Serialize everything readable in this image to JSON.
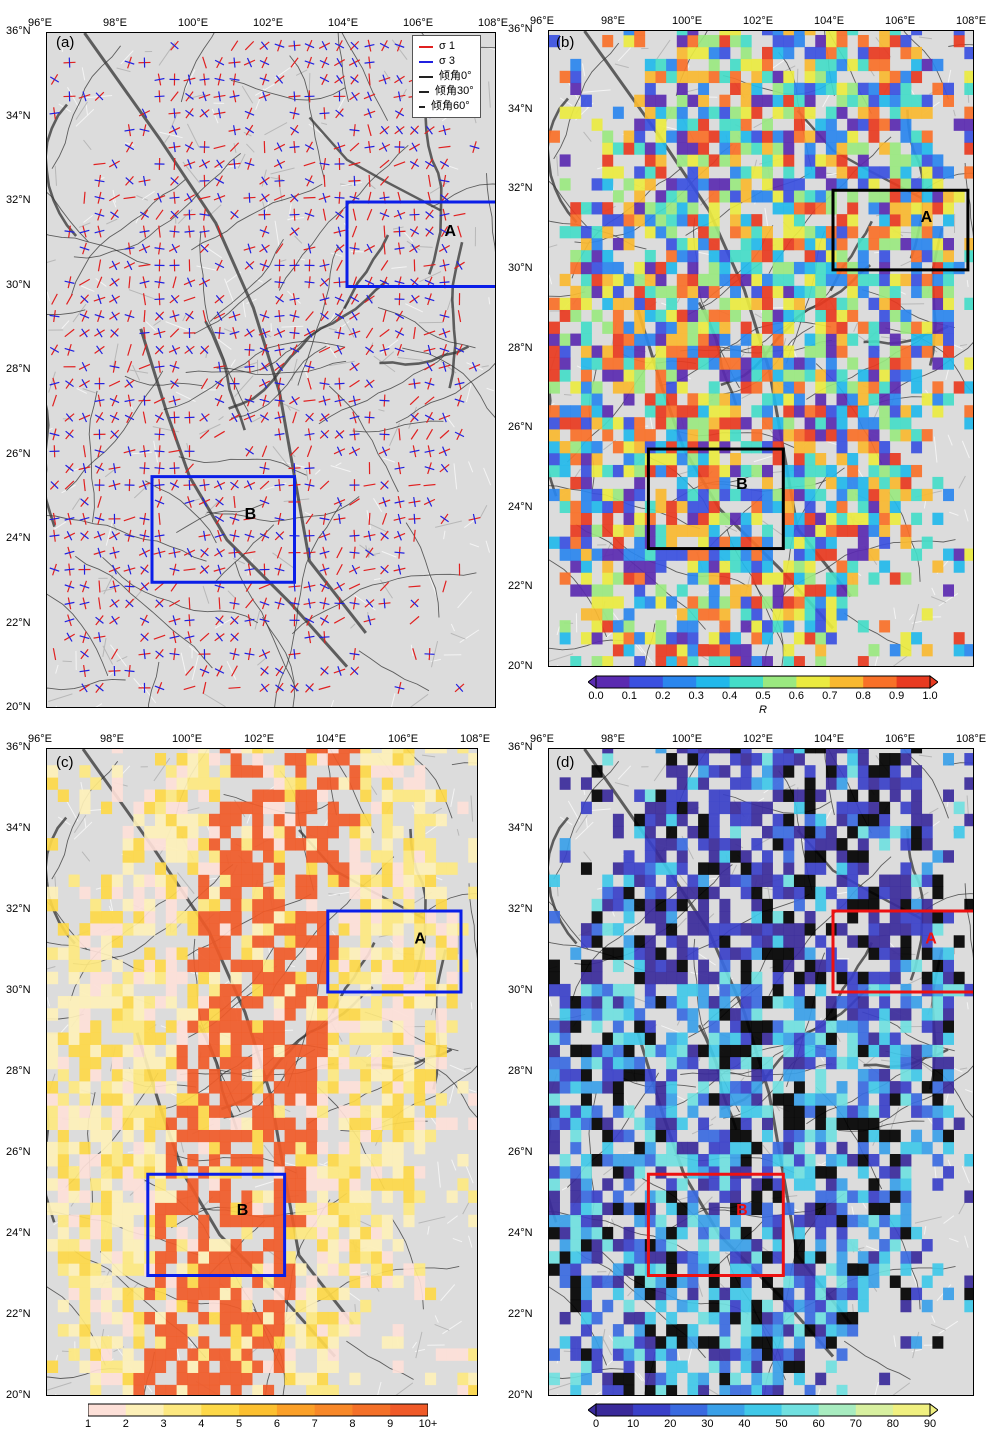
{
  "colors": {
    "sigma1": "#e02020",
    "sigma3": "#2020e0",
    "boxBlue": "#0a1ee8",
    "boxBlack": "#000000",
    "boxRed": "#ee1111",
    "relief": "#dcdcdc",
    "fault": "#333333"
  },
  "axes": {
    "lon_ticks": [
      "96°E",
      "98°E",
      "100°E",
      "102°E",
      "104°E",
      "106°E",
      "108°E"
    ],
    "lat_ticks": [
      "36°N",
      "34°N",
      "32°N",
      "30°N",
      "28°N",
      "26°N",
      "24°N",
      "22°N",
      "20°N"
    ],
    "lon_range": [
      96,
      108
    ],
    "lat_range": [
      20,
      36
    ]
  },
  "panels": [
    {
      "tag": "(a)",
      "box_color": "#0a1ee8",
      "box_a_label": "A",
      "box_b_label": "B",
      "box_a_label_color": "#000000",
      "box_b_label_color": "#000000"
    },
    {
      "tag": "(b)",
      "box_color": "#000000",
      "box_a_label": "A",
      "box_b_label": "B",
      "box_a_label_color": "#000000",
      "box_b_label_color": "#000000"
    },
    {
      "tag": "(c)",
      "box_color": "#0a1ee8",
      "box_a_label": "A",
      "box_b_label": "B",
      "box_a_label_color": "#000000",
      "box_b_label_color": "#000000"
    },
    {
      "tag": "(d)",
      "box_color": "#ee1111",
      "box_a_label": "A",
      "box_b_label": "B",
      "box_a_label_color": "#ee1111",
      "box_b_label_color": "#ee1111"
    }
  ],
  "legend_a": {
    "items": [
      "σ 1",
      "σ 3",
      "倾角0°",
      "倾角30°",
      "倾角60°"
    ]
  },
  "colorbar_b": {
    "labels": [
      "0.0",
      "0.1",
      "0.2",
      "0.3",
      "0.4",
      "0.5",
      "0.6",
      "0.7",
      "0.8",
      "0.9",
      "1.0"
    ],
    "title": "R",
    "colors": [
      "#5a2ab0",
      "#3a50e0",
      "#2a86ee",
      "#22b8ea",
      "#44dcc8",
      "#9ae880",
      "#eaea40",
      "#f8b830",
      "#f87028",
      "#e83a20"
    ]
  },
  "colorbar_c": {
    "labels": [
      "1",
      "2",
      "3",
      "4",
      "5",
      "6",
      "7",
      "8",
      "9",
      "10+"
    ],
    "colors": [
      "#fde0d8",
      "#fdf0b8",
      "#fde880",
      "#fdd848",
      "#fcc030",
      "#fba028",
      "#f88828",
      "#f47028",
      "#f05a28"
    ]
  },
  "colorbar_d": {
    "labels": [
      "0",
      "10",
      "20",
      "30",
      "40",
      "50",
      "60",
      "70",
      "80",
      "90"
    ],
    "colors": [
      "#3a2a9a",
      "#3a40c8",
      "#3a6ae0",
      "#3aa0e8",
      "#40c8e8",
      "#70e0e0",
      "#a8ecc0",
      "#d8f0a0",
      "#f0f080"
    ]
  }
}
